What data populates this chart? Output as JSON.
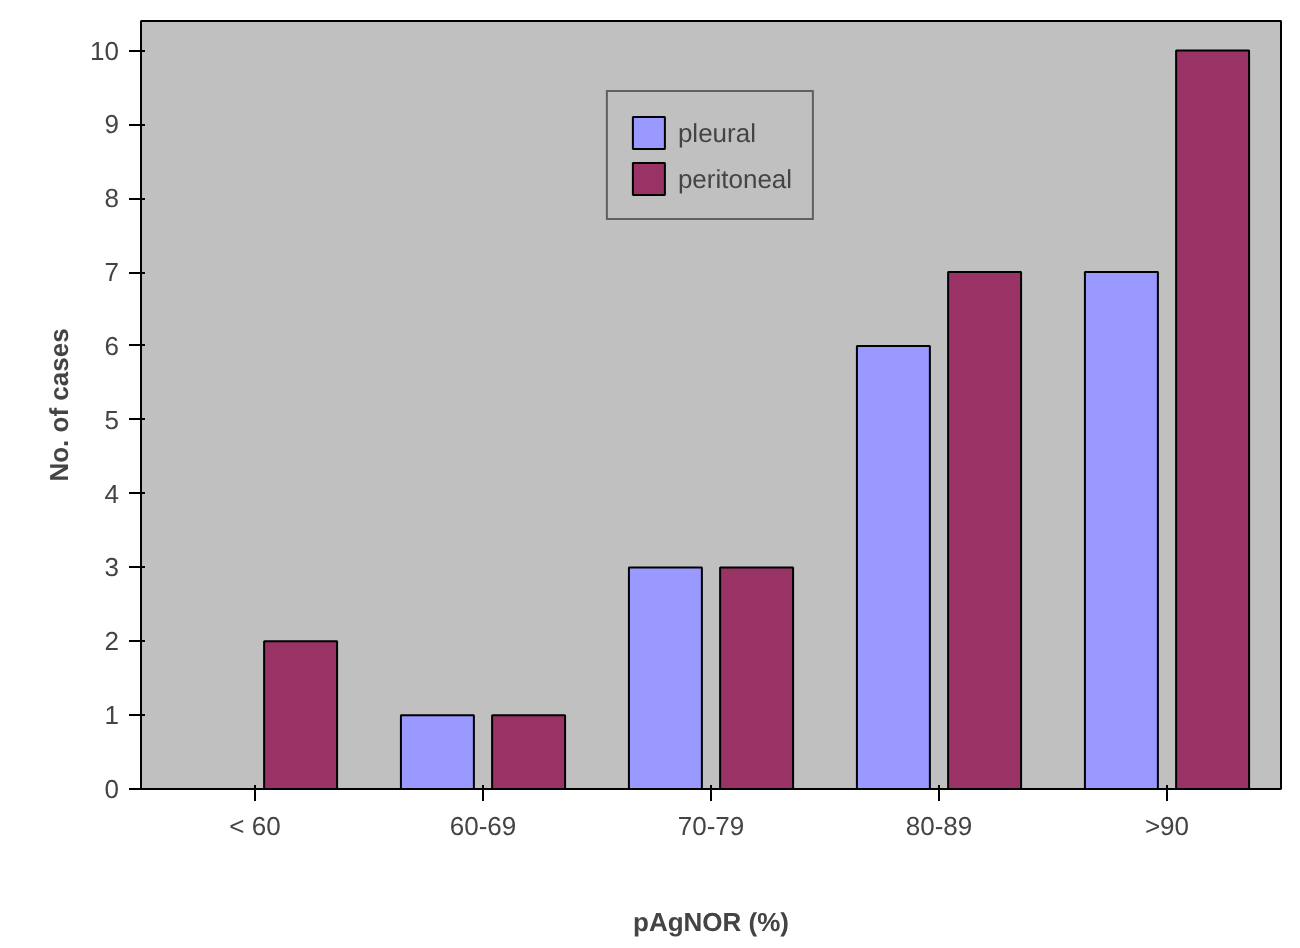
{
  "chart_data": {
    "type": "bar",
    "xlabel": "pAgNOR (%)",
    "ylabel": "No. of cases",
    "categories": [
      "< 60",
      "60-69",
      "70-79",
      "80-89",
      ">90"
    ],
    "series": [
      {
        "name": "pleural",
        "color": "#9999ff",
        "values": [
          null,
          1,
          3,
          6,
          7
        ]
      },
      {
        "name": "peritoneal",
        "color": "#993366",
        "values": [
          2,
          1,
          3,
          7,
          10
        ]
      }
    ],
    "ylim": [
      0,
      10.4
    ],
    "yticks": [
      0,
      1,
      2,
      3,
      4,
      5,
      6,
      7,
      8,
      9,
      10
    ],
    "grid": false,
    "legend": "top"
  }
}
